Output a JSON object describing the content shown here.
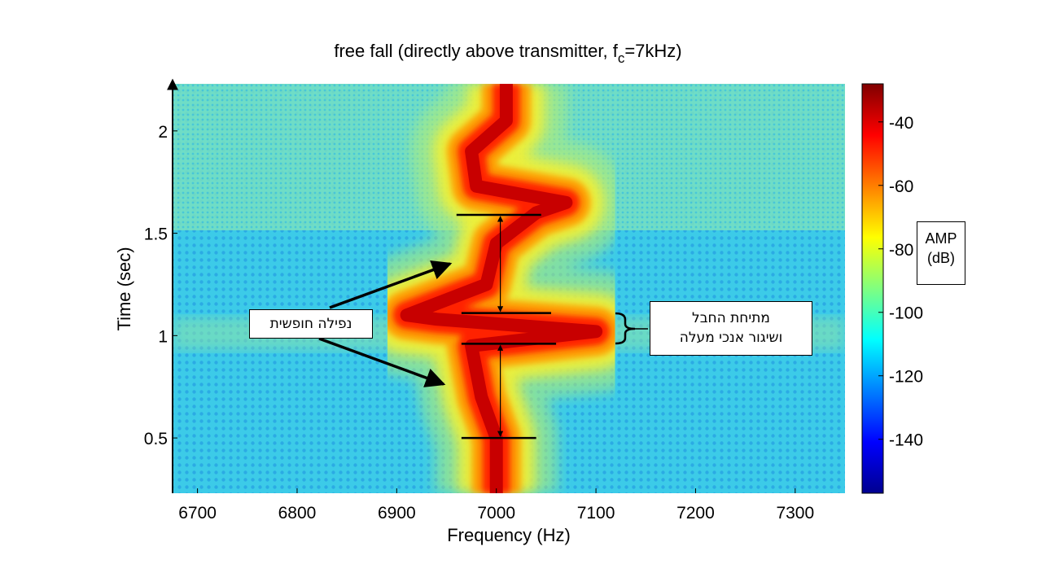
{
  "chart_data": {
    "type": "heatmap",
    "title_main": "free fall (directly above transmitter, f",
    "title_sub": "c",
    "title_tail": "=7kHz)",
    "xlabel": "Frequency (Hz)",
    "ylabel": "Time (sec)",
    "xlim": [
      6675,
      7350
    ],
    "ylim": [
      0.23,
      2.23
    ],
    "xticks": [
      6700,
      6800,
      6900,
      7000,
      7100,
      7200,
      7300
    ],
    "yticks": [
      0.5,
      1,
      1.5,
      2
    ],
    "colorbar": {
      "range": [
        -157,
        -28
      ],
      "ticks": [
        -40,
        -60,
        -80,
        -100,
        -120,
        -140
      ],
      "label_line1": "AMP",
      "label_line2": "(dB)",
      "colormap": "jet"
    },
    "ridge": [
      {
        "t": 0.23,
        "f": 7000
      },
      {
        "t": 0.5,
        "f": 7000
      },
      {
        "t": 0.7,
        "f": 6985
      },
      {
        "t": 0.95,
        "f": 6975
      },
      {
        "t": 1.02,
        "f": 7100
      },
      {
        "t": 1.08,
        "f": 6940
      },
      {
        "t": 1.1,
        "f": 6910
      },
      {
        "t": 1.25,
        "f": 6990
      },
      {
        "t": 1.45,
        "f": 7000
      },
      {
        "t": 1.6,
        "f": 7040
      },
      {
        "t": 1.65,
        "f": 7070
      },
      {
        "t": 1.73,
        "f": 6980
      },
      {
        "t": 1.9,
        "f": 6975
      },
      {
        "t": 2.05,
        "f": 7010
      },
      {
        "t": 2.23,
        "f": 7010
      }
    ],
    "annotations": [
      {
        "text": "נפילה חופשית"
      },
      {
        "line1": "מתיחת החבל",
        "line2": "ושיגור אנכי מעלה"
      }
    ],
    "markers_time": [
      0.5,
      0.96,
      1.11,
      1.59
    ]
  },
  "colors": {
    "background_field": "#33c9e6",
    "ridge_core": "#c80000"
  }
}
